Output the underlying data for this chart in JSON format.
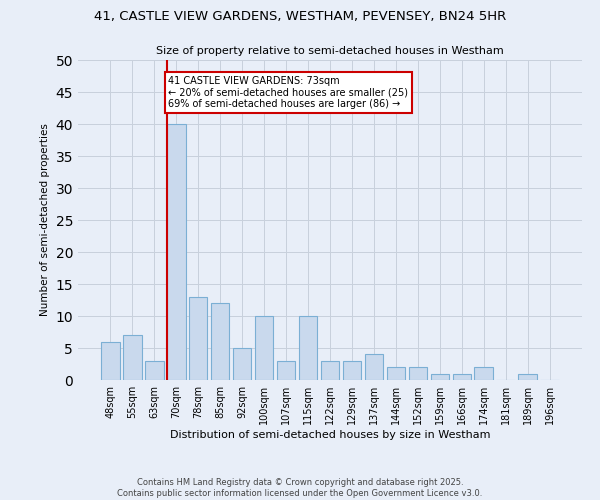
{
  "title_line1": "41, CASTLE VIEW GARDENS, WESTHAM, PEVENSEY, BN24 5HR",
  "title_line2": "Size of property relative to semi-detached houses in Westham",
  "xlabel": "Distribution of semi-detached houses by size in Westham",
  "ylabel": "Number of semi-detached properties",
  "footer_line1": "Contains HM Land Registry data © Crown copyright and database right 2025.",
  "footer_line2": "Contains public sector information licensed under the Open Government Licence v3.0.",
  "categories": [
    "48sqm",
    "55sqm",
    "63sqm",
    "70sqm",
    "78sqm",
    "85sqm",
    "92sqm",
    "100sqm",
    "107sqm",
    "115sqm",
    "122sqm",
    "129sqm",
    "137sqm",
    "144sqm",
    "152sqm",
    "159sqm",
    "166sqm",
    "174sqm",
    "181sqm",
    "189sqm",
    "196sqm"
  ],
  "values": [
    6,
    7,
    3,
    40,
    13,
    12,
    5,
    10,
    3,
    10,
    3,
    3,
    4,
    2,
    2,
    1,
    1,
    2,
    0,
    1,
    0
  ],
  "bar_color": "#c9d9ed",
  "bar_edge_color": "#7bafd4",
  "red_line_index": 3,
  "annotation_text": "41 CASTLE VIEW GARDENS: 73sqm\n← 20% of semi-detached houses are smaller (25)\n69% of semi-detached houses are larger (86) →",
  "annotation_box_color": "#ffffff",
  "annotation_box_edge": "#cc0000",
  "red_line_color": "#cc0000",
  "grid_color": "#c8d0dc",
  "background_color": "#e8eef8",
  "ylim": [
    0,
    50
  ],
  "yticks": [
    0,
    5,
    10,
    15,
    20,
    25,
    30,
    35,
    40,
    45,
    50
  ]
}
